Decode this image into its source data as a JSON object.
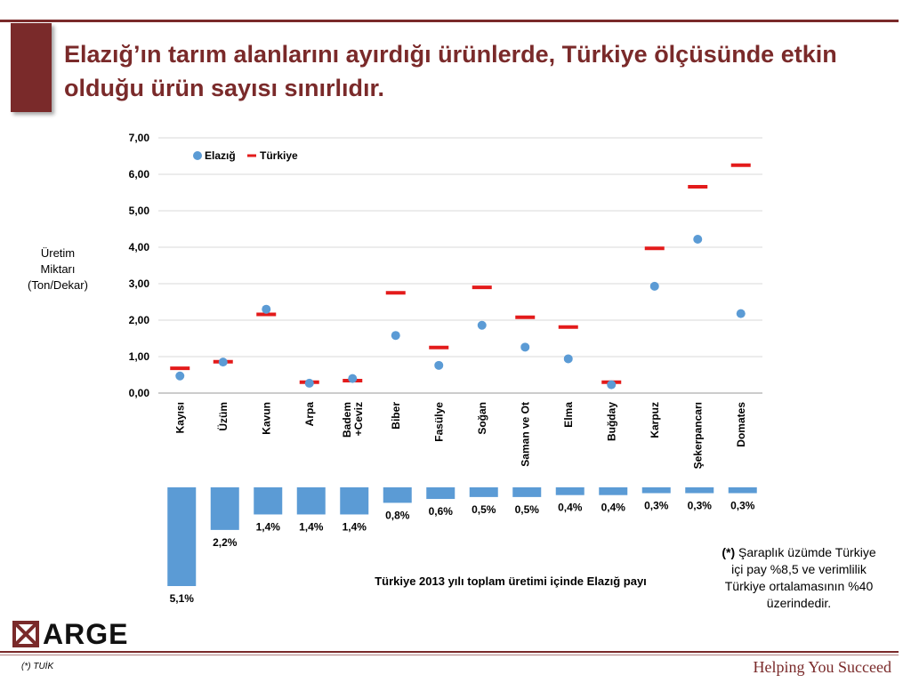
{
  "slide": {
    "title": "Elazığ’ın tarım alanlarını ayırdığı ürünlerde, Türkiye ölçüsünde etkin olduğu ürün sayısı sınırlıdır.",
    "ylabel_lines": [
      "Üretim",
      "Miktarı",
      "(Ton/Dekar)"
    ],
    "footnote_marker": "(*)",
    "footnote_text": " Şaraplık üzümde Türkiye içi pay %8,5 ve verimlilik Türkiye ortalamasının %40 üzerindedir.",
    "logo_text": "ARGE",
    "source": "(*) TUİK",
    "tagline": "Helping You Succeed"
  },
  "colors": {
    "accent": "#7a2a2a",
    "elazig": "#5b9bd5",
    "turkiye": "#e31b1b",
    "bar": "#5b9bd5",
    "grid": "#d9d9d9"
  },
  "chart_data": [
    {
      "type": "scatter",
      "categories": [
        "Kayısı",
        "Üzüm",
        "Kavun",
        "Arpa",
        "Badem +Ceviz",
        "Biber",
        "Fasülye",
        "Soğan",
        "Saman ve Ot",
        "Elma",
        "Buğday",
        "Karpuz",
        "Şekerpancarı",
        "Domates"
      ],
      "category_label_lines": [
        [
          "Kayısı"
        ],
        [
          "Üzüm"
        ],
        [
          "Kavun"
        ],
        [
          "Arpa"
        ],
        [
          "Badem",
          "+Ceviz"
        ],
        [
          "Biber"
        ],
        [
          "Fasülye"
        ],
        [
          "Soğan"
        ],
        [
          "Saman ve Ot"
        ],
        [
          "Elma"
        ],
        [
          "Buğday"
        ],
        [
          "Karpuz"
        ],
        [
          "Şekerpancarı"
        ],
        [
          "Domates"
        ]
      ],
      "series": [
        {
          "name": "Elazığ",
          "marker": "circle",
          "values": [
            0.47,
            0.85,
            2.3,
            0.27,
            0.4,
            1.58,
            0.76,
            1.86,
            1.26,
            0.94,
            0.23,
            2.93,
            4.22,
            2.18
          ]
        },
        {
          "name": "Türkiye",
          "marker": "dash",
          "values": [
            0.68,
            0.86,
            2.16,
            0.3,
            0.34,
            2.75,
            1.25,
            2.9,
            2.08,
            1.81,
            0.3,
            3.97,
            5.66,
            6.25
          ]
        }
      ],
      "ylim": [
        0,
        7
      ],
      "yticks": [
        "0,00",
        "1,00",
        "2,00",
        "3,00",
        "4,00",
        "5,00",
        "6,00",
        "7,00"
      ],
      "grid": true,
      "legend": "top-left"
    },
    {
      "type": "bar",
      "orientation": "downward",
      "categories": [
        "Kayısı",
        "Üzüm",
        "Kavun",
        "Arpa",
        "Badem +Ceviz",
        "Biber",
        "Fasülye",
        "Soğan",
        "Saman ve Ot",
        "Elma",
        "Buğday",
        "Karpuz",
        "Şekerpancarı",
        "Domates"
      ],
      "values": [
        5.1,
        2.2,
        1.4,
        1.4,
        1.4,
        0.8,
        0.6,
        0.5,
        0.5,
        0.4,
        0.4,
        0.3,
        0.3,
        0.3
      ],
      "value_labels": [
        "5,1%",
        "2,2%",
        "1,4%",
        "1,4%",
        "1,4%",
        "0,8%",
        "0,6%",
        "0,5%",
        "0,5%",
        "0,4%",
        "0,4%",
        "0,3%",
        "0,3%",
        "0,3%"
      ],
      "title": "Türkiye 2013 yılı toplam üretimi içinde Elazığ payı"
    }
  ]
}
